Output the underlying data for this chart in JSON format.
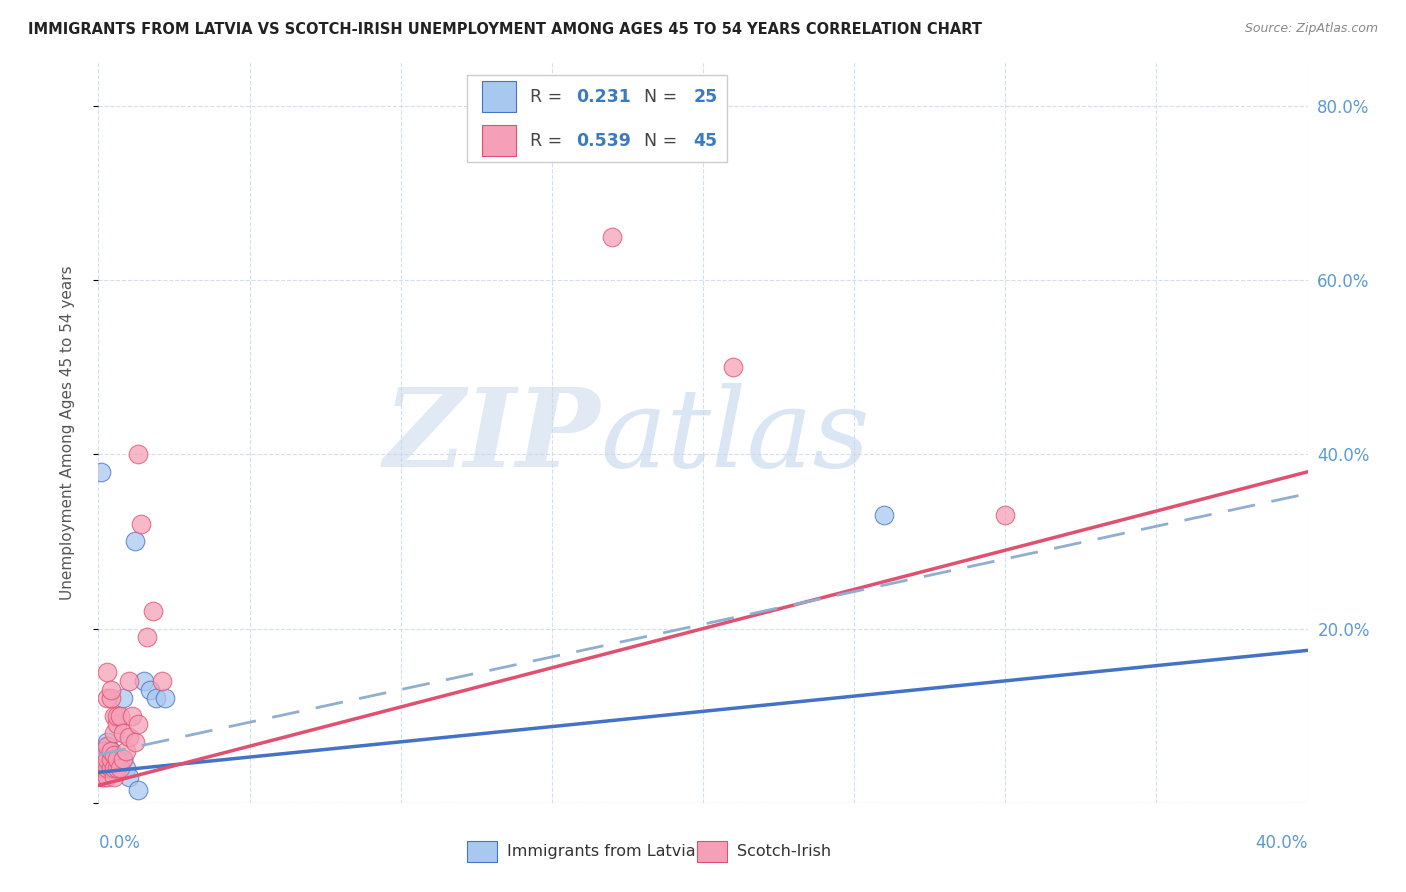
{
  "title": "IMMIGRANTS FROM LATVIA VS SCOTCH-IRISH UNEMPLOYMENT AMONG AGES 45 TO 54 YEARS CORRELATION CHART",
  "source": "Source: ZipAtlas.com",
  "ylabel": "Unemployment Among Ages 45 to 54 years",
  "legend1_color": "#a8c8f0",
  "legend2_color": "#f5a0b8",
  "trend_blue_color": "#4472c4",
  "trend_pink_color": "#e05070",
  "trend_dash_color": "#90aed0",
  "watermark_zip": "ZIP",
  "watermark_atlas": "atlas",
  "blue_dots": [
    [
      0.001,
      0.38
    ],
    [
      0.002,
      0.06
    ],
    [
      0.002,
      0.05
    ],
    [
      0.002,
      0.045
    ],
    [
      0.003,
      0.055
    ],
    [
      0.003,
      0.065
    ],
    [
      0.003,
      0.07
    ],
    [
      0.004,
      0.06
    ],
    [
      0.004,
      0.05
    ],
    [
      0.005,
      0.045
    ],
    [
      0.005,
      0.04
    ],
    [
      0.006,
      0.05
    ],
    [
      0.006,
      0.035
    ],
    [
      0.007,
      0.04
    ],
    [
      0.008,
      0.05
    ],
    [
      0.008,
      0.12
    ],
    [
      0.009,
      0.04
    ],
    [
      0.01,
      0.03
    ],
    [
      0.012,
      0.3
    ],
    [
      0.015,
      0.14
    ],
    [
      0.017,
      0.13
    ],
    [
      0.019,
      0.12
    ],
    [
      0.022,
      0.12
    ],
    [
      0.26,
      0.33
    ],
    [
      0.013,
      0.015
    ]
  ],
  "pink_dots": [
    [
      0.001,
      0.03
    ],
    [
      0.001,
      0.04
    ],
    [
      0.001,
      0.05
    ],
    [
      0.002,
      0.03
    ],
    [
      0.002,
      0.04
    ],
    [
      0.002,
      0.05
    ],
    [
      0.002,
      0.06
    ],
    [
      0.003,
      0.03
    ],
    [
      0.003,
      0.04
    ],
    [
      0.003,
      0.05
    ],
    [
      0.003,
      0.065
    ],
    [
      0.003,
      0.12
    ],
    [
      0.003,
      0.15
    ],
    [
      0.004,
      0.04
    ],
    [
      0.004,
      0.05
    ],
    [
      0.004,
      0.06
    ],
    [
      0.004,
      0.12
    ],
    [
      0.004,
      0.13
    ],
    [
      0.005,
      0.03
    ],
    [
      0.005,
      0.04
    ],
    [
      0.005,
      0.055
    ],
    [
      0.005,
      0.08
    ],
    [
      0.005,
      0.1
    ],
    [
      0.006,
      0.04
    ],
    [
      0.006,
      0.05
    ],
    [
      0.006,
      0.09
    ],
    [
      0.006,
      0.1
    ],
    [
      0.007,
      0.04
    ],
    [
      0.007,
      0.1
    ],
    [
      0.008,
      0.08
    ],
    [
      0.008,
      0.05
    ],
    [
      0.009,
      0.06
    ],
    [
      0.01,
      0.075
    ],
    [
      0.01,
      0.14
    ],
    [
      0.011,
      0.1
    ],
    [
      0.012,
      0.07
    ],
    [
      0.013,
      0.09
    ],
    [
      0.013,
      0.4
    ],
    [
      0.014,
      0.32
    ],
    [
      0.016,
      0.19
    ],
    [
      0.018,
      0.22
    ],
    [
      0.021,
      0.14
    ],
    [
      0.17,
      0.65
    ],
    [
      0.21,
      0.5
    ],
    [
      0.3,
      0.33
    ]
  ],
  "xmin": 0.0,
  "xmax": 0.4,
  "ymin": 0.0,
  "ymax": 0.85,
  "blue_trend_x0": 0.0,
  "blue_trend_y0": 0.035,
  "blue_trend_x1": 0.4,
  "blue_trend_y1": 0.175,
  "pink_trend_x0": 0.0,
  "pink_trend_y0": 0.02,
  "pink_trend_x1": 0.4,
  "pink_trend_y1": 0.38,
  "dash_trend_x0": 0.0,
  "dash_trend_y0": 0.055,
  "dash_trend_x1": 0.4,
  "dash_trend_y1": 0.355,
  "figwidth": 14.06,
  "figheight": 8.92
}
